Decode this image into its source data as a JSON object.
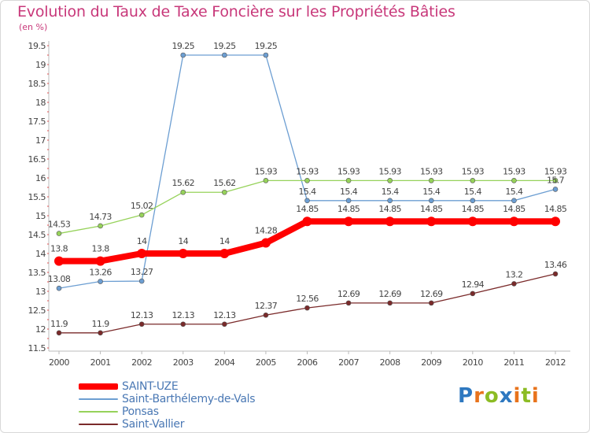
{
  "title": "Evolution du Taux de Taxe Foncière sur les Propriétés Bâties",
  "unit_label": "(en %)",
  "logo": {
    "text": "Proxiti",
    "letters": [
      "P",
      "r",
      "o",
      "x",
      "i",
      "t",
      "i"
    ],
    "colors": [
      "#2e78c0",
      "#e8731c",
      "#8cbc24",
      "#2e78c0",
      "#e8731c",
      "#8cbc24",
      "#e8731c"
    ]
  },
  "chart_data": {
    "type": "line",
    "title": "Evolution du Taux de Taxe Foncière sur les Propriétés Bâties",
    "ylabel": "(en %)",
    "xlabel": "",
    "x": [
      "2000",
      "2001",
      "2002",
      "2003",
      "2004",
      "2005",
      "2006",
      "2007",
      "2008",
      "2009",
      "2010",
      "2011",
      "2012"
    ],
    "ylim": [
      11.5,
      19.5
    ],
    "yticks": [
      "19.5",
      "19",
      "18.5",
      "18",
      "17.5",
      "17",
      "16.5",
      "16",
      "15.5",
      "15",
      "14.5",
      "14",
      "13.5",
      "13",
      "12.5",
      "12",
      "11.5"
    ],
    "series": [
      {
        "name": "SAINT-UZE",
        "color": "#ff0000",
        "values": [
          13.8,
          13.8,
          14,
          14,
          14,
          14.28,
          14.85,
          14.85,
          14.85,
          14.85,
          14.85,
          14.85,
          14.85
        ],
        "labels": [
          "13.8",
          "13.8",
          "14",
          "14",
          "14",
          "14.28",
          "14.85",
          "14.85",
          "14.85",
          "14.85",
          "14.85",
          "14.85",
          "14.85"
        ]
      },
      {
        "name": "Saint-Barthélemy-de-Vals",
        "color": "#6c9ed2",
        "values": [
          13.08,
          13.26,
          13.27,
          19.25,
          19.25,
          19.25,
          15.4,
          15.4,
          15.4,
          15.4,
          15.4,
          15.4,
          15.7
        ],
        "labels": [
          "13.08",
          "13.26",
          "13.27",
          "19.25",
          "19.25",
          "19.25",
          "15.4",
          "15.4",
          "15.4",
          "15.4",
          "15.4",
          "15.4",
          "15.7"
        ]
      },
      {
        "name": "Ponsas",
        "color": "#96d25a",
        "values": [
          14.53,
          14.73,
          15.02,
          15.62,
          15.62,
          15.93,
          15.93,
          15.93,
          15.93,
          15.93,
          15.93,
          15.93,
          15.93
        ],
        "labels": [
          "14.53",
          "14.73",
          "15.02",
          "15.62",
          "15.62",
          "15.93",
          "15.93",
          "15.93",
          "15.93",
          "15.93",
          "15.93",
          "15.93",
          "15.93"
        ]
      },
      {
        "name": "Saint-Vallier",
        "color": "#7a2a2a",
        "values": [
          11.9,
          11.9,
          12.13,
          12.13,
          12.13,
          12.37,
          12.56,
          12.69,
          12.69,
          12.69,
          12.94,
          13.2,
          13.46
        ],
        "labels": [
          "11.9",
          "11.9",
          "12.13",
          "12.13",
          "12.13",
          "12.37",
          "12.56",
          "12.69",
          "12.69",
          "12.69",
          "12.94",
          "13.2",
          "13.46"
        ]
      }
    ],
    "legend_position": "bottom-left",
    "grid": false
  }
}
